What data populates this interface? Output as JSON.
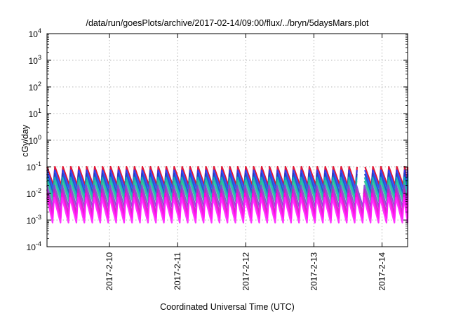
{
  "chart_data": {
    "type": "line",
    "title": "/data/run/goesPlots/archive/2017-02-14/09:00/flux/../bryn/5daysMars.plot",
    "xlabel": "Coordinated Universal Time (UTC)",
    "ylabel": "cGy/day",
    "yscale": "log",
    "ylim": [
      0.0001,
      10000
    ],
    "xlim": [
      "2017-02-09T02:00",
      "2017-02-14T09:00"
    ],
    "grid": true,
    "x_ticks": [
      "2017-2-10",
      "2017-2-11",
      "2017-2-12",
      "2017-2-13",
      "2017-2-14"
    ],
    "y_ticks": [
      {
        "value": 0.0001,
        "base": "10",
        "exp": "-4"
      },
      {
        "value": 0.001,
        "base": "10",
        "exp": "-3"
      },
      {
        "value": 0.01,
        "base": "10",
        "exp": "-2"
      },
      {
        "value": 0.1,
        "base": "10",
        "exp": "-1"
      },
      {
        "value": 1,
        "base": "10",
        "exp": "0"
      },
      {
        "value": 10,
        "base": "10",
        "exp": "1"
      },
      {
        "value": 100,
        "base": "10",
        "exp": "2"
      },
      {
        "value": 1000,
        "base": "10",
        "exp": "3"
      },
      {
        "value": 10000,
        "base": "10",
        "exp": "4"
      }
    ],
    "cycle_hours": 2.8,
    "gap": [
      "2017-02-13T15:00",
      "2017-02-13T17:30"
    ],
    "series": [
      {
        "color": "#e00020",
        "peak": 0.1,
        "trough": 0.02
      },
      {
        "color": "#2040ff",
        "peak": 0.075,
        "trough": 0.015
      },
      {
        "color": "#1a40c0",
        "peak": 0.055,
        "trough": 0.01
      },
      {
        "color": "#00b0c0",
        "peak": 0.04,
        "trough": 0.007
      },
      {
        "color": "#30c090",
        "peak": 0.03,
        "trough": 0.005
      },
      {
        "color": "#8040d0",
        "peak": 0.02,
        "trough": 0.003
      },
      {
        "color": "#c020c0",
        "peak": 0.014,
        "trough": 0.0018
      },
      {
        "color": "#ff00e0",
        "peak": 0.01,
        "trough": 0.0012
      },
      {
        "color": "#ff20ff",
        "peak": 0.007,
        "trough": 0.0008
      }
    ]
  }
}
